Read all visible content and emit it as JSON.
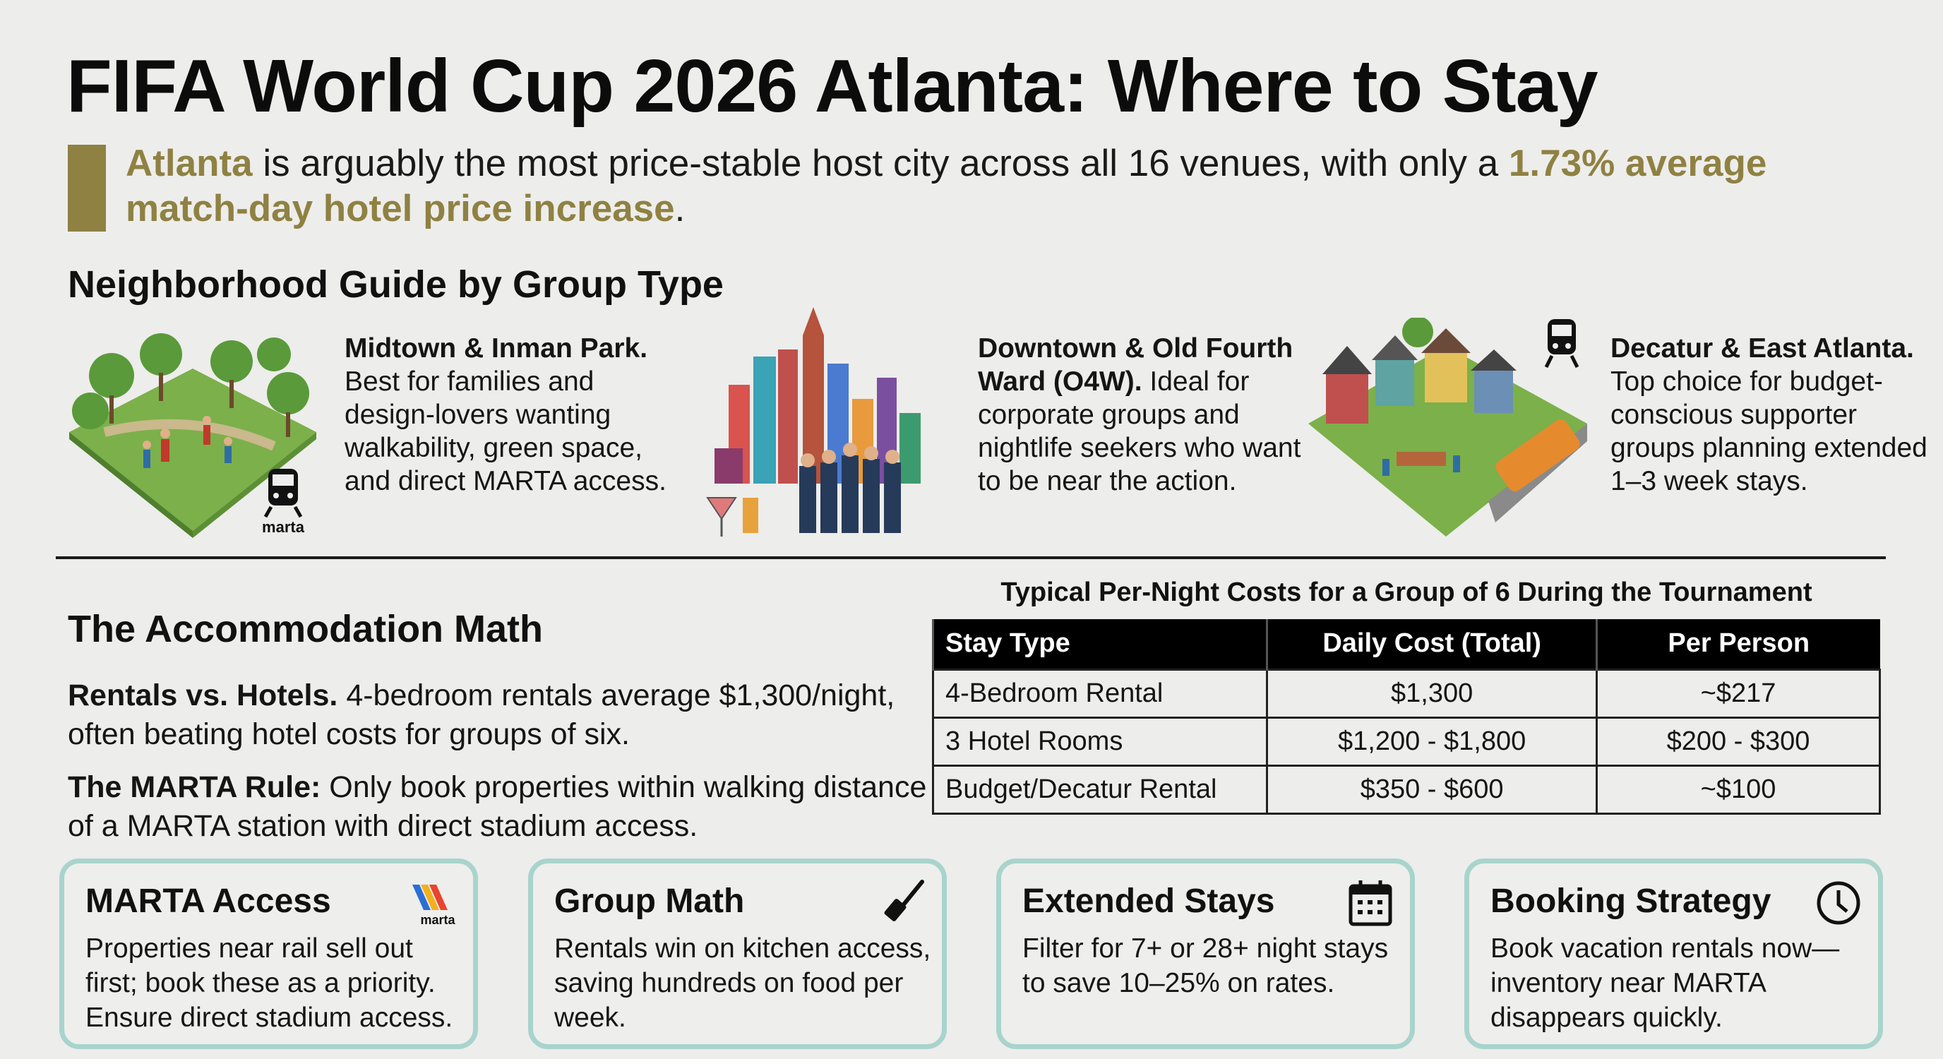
{
  "title": "FIFA World Cup 2026 Atlanta: Where to Stay",
  "subtitle": {
    "highlight_start": "Atlanta",
    "middle": " is arguably the most price-stable host city across all 16 venues, with only a ",
    "highlight_end": "1.73% average match-day hotel price increase",
    "end": "."
  },
  "colors": {
    "gold": "#8f8142",
    "card_border": "#a8d4cd",
    "background": "#ededeb"
  },
  "neighborhood_guide": {
    "heading": "Neighborhood Guide by Group Type",
    "items": [
      {
        "name": "Midtown & Inman Park.",
        "description": "Best for families and design-lovers wanting walkability, green space, and direct MARTA access.",
        "illustration": "park-illustration",
        "badge": "marta"
      },
      {
        "name": "Downtown & Old Fourth Ward (O4W).",
        "description": "Ideal for corporate groups and nightlife seekers who want to be near the action.",
        "illustration": "city-skyline-illustration"
      },
      {
        "name": "Decatur & East Atlanta.",
        "description": "Top choice for budget-conscious supporter groups planning extended 1–3 week stays.",
        "illustration": "neighborhood-houses-illustration"
      }
    ]
  },
  "accommodation_math": {
    "heading": "The Accommodation Math",
    "paragraphs": [
      {
        "lead": "Rentals vs. Hotels.",
        "text": " 4-bedroom rentals average $1,300/night, often beating hotel costs for groups of six."
      },
      {
        "lead": "The MARTA Rule:",
        "text": " Only book properties within walking distance of a MARTA station with direct stadium access."
      }
    ]
  },
  "cost_table": {
    "title": "Typical Per-Night Costs for a Group of 6 During the Tournament",
    "columns": [
      "Stay Type",
      "Daily Cost (Total)",
      "Per Person"
    ],
    "rows": [
      [
        "4-Bedroom Rental",
        "$1,300",
        "~$217"
      ],
      [
        "3 Hotel Rooms",
        "$1,200 - $1,800",
        "$200 - $300"
      ],
      [
        "Budget/Decatur Rental",
        "$350 - $600",
        "~$100"
      ]
    ]
  },
  "cards": [
    {
      "title": "MARTA Access",
      "body": "Properties near rail sell out first; book these as a priority. Ensure direct stadium access.",
      "icon": "marta-logo-icon",
      "icon_text": "marta"
    },
    {
      "title": "Group Math",
      "body": "Rentals win on kitchen access, saving hundreds on food per week.",
      "icon": "spatula-icon"
    },
    {
      "title": "Extended Stays",
      "body": "Filter for 7+ or 28+ night stays to save 10–25% on rates.",
      "icon": "calendar-icon"
    },
    {
      "title": "Booking Strategy",
      "body": "Book vacation rentals now—inventory near MARTA disappears quickly.",
      "icon": "clock-icon"
    }
  ]
}
